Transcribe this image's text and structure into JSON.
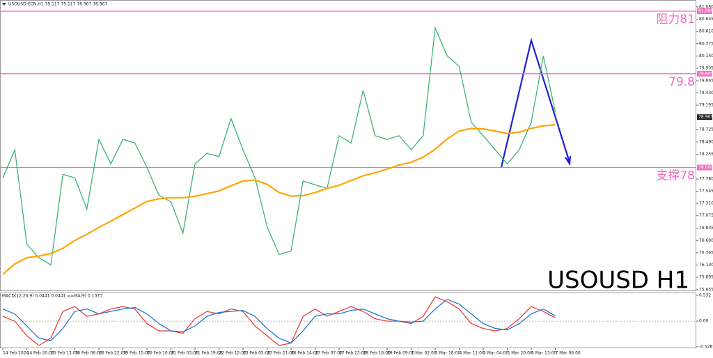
{
  "chart_data": [
    {
      "type": "line",
      "title": "USOUSD-ECN,H1 79.117 79.117 78.967 78.967",
      "watermark": "USOUSD H1",
      "categories": [
        "14 Feb 2024",
        null,
        "14 Feb 20:00",
        null,
        "15 Feb 13:00",
        null,
        "16 Feb 06:00",
        null,
        "16 Feb 22:00",
        null,
        "19 Feb 15:00",
        null,
        "20 Feb 10:00",
        null,
        "21 Feb 03:00",
        null,
        "21 Feb 19:00",
        null,
        "22 Feb 12:00",
        null,
        "23 Feb 05:00",
        null,
        "23 Feb 21:00",
        null,
        "26 Feb 14:00",
        null,
        "27 Feb 07:00",
        null,
        "27 Feb 23:00",
        null,
        "28 Feb 16:00",
        null,
        "29 Feb 09:00",
        null,
        "1 Mar 02:00",
        null,
        "1 Mar 18:00",
        null,
        "4 Mar 11:00",
        null,
        "5 Mar 04:00",
        null,
        "5 Mar 20:00",
        null,
        "6 Mar 13:00",
        null,
        "7 Mar 06:00"
      ],
      "series": [
        {
          "name": "USOUSD",
          "color": "#3cb371",
          "values": [
            77.8,
            78.34,
            76.53,
            76.27,
            76.13,
            77.87,
            77.8,
            77.2,
            78.54,
            78.07,
            78.54,
            78.47,
            78.0,
            77.47,
            77.34,
            76.74,
            78.07,
            78.27,
            78.21,
            78.94,
            78.34,
            77.8,
            76.87,
            76.33,
            76.4,
            77.74,
            77.67,
            77.6,
            78.61,
            78.47,
            79.48,
            78.61,
            78.54,
            78.61,
            78.34,
            78.61,
            80.68,
            80.14,
            79.94,
            78.87,
            78.61,
            78.34,
            78.07,
            78.34,
            78.87,
            80.14,
            79.07
          ]
        },
        {
          "name": "MA",
          "color": "#ffa500",
          "values": [
            75.95,
            76.15,
            76.27,
            76.3,
            76.35,
            76.45,
            76.6,
            76.72,
            76.85,
            76.97,
            77.1,
            77.22,
            77.35,
            77.4,
            77.42,
            77.42,
            77.45,
            77.5,
            77.55,
            77.65,
            77.74,
            77.76,
            77.68,
            77.52,
            77.45,
            77.46,
            77.52,
            77.6,
            77.66,
            77.75,
            77.84,
            77.9,
            77.97,
            78.05,
            78.1,
            78.2,
            78.35,
            78.55,
            78.7,
            78.75,
            78.74,
            78.7,
            78.65,
            78.68,
            78.75,
            78.8,
            78.82
          ]
        }
      ],
      "levels": [
        {
          "value": 81,
          "label": "阻力81",
          "tag": "81.000"
        },
        {
          "value": 79.8,
          "label": "79.8",
          "tag": "79.800"
        },
        {
          "value": 78,
          "label": "支撑78",
          "tag": "78.000"
        }
      ],
      "last_price": {
        "value": 78.967,
        "label": "78.967"
      },
      "level_color": "#f06ec0",
      "ylim": [
        75.655,
        81.08
      ],
      "yticks": [
        {
          "value": 81.08,
          "label": "81.080"
        },
        80.845,
        {
          "value": 80.61,
          "label": "80.610"
        },
        80.375,
        {
          "value": 80.14,
          "label": "80.140"
        },
        79.905,
        79.665,
        {
          "value": 79.43,
          "label": "79.430"
        },
        79.195,
        78.725,
        {
          "value": 78.49,
          "label": "78.490"
        },
        78.255,
        {
          "value": 77.78,
          "label": "77.780"
        },
        77.545,
        {
          "value": 77.31,
          "label": "77.310"
        },
        77.075,
        76.835,
        {
          "value": 76.6,
          "label": "76.600"
        },
        76.365,
        {
          "value": 76.13,
          "label": "76.130"
        },
        75.895,
        75.655
      ]
    },
    {
      "type": "line",
      "title": "MACD(12,26,9) 0.0441 0.0441 ==MA(9) 0.1073",
      "series": [
        {
          "name": "MACD",
          "color": "#e8403a",
          "values": [
            0.1,
            0.0,
            -0.3,
            -0.5,
            -0.35,
            0.2,
            0.3,
            0.1,
            0.15,
            0.25,
            0.3,
            0.25,
            -0.05,
            -0.2,
            -0.2,
            -0.25,
            0.05,
            0.2,
            0.15,
            0.25,
            0.2,
            -0.1,
            -0.3,
            -0.5,
            -0.45,
            0.1,
            0.25,
            0.1,
            0.2,
            0.3,
            0.2,
            0.05,
            0.0,
            0.0,
            -0.05,
            0.1,
            0.5,
            0.4,
            0.25,
            -0.05,
            -0.15,
            -0.2,
            -0.15,
            0.05,
            0.3,
            0.2,
            0.07
          ]
        },
        {
          "name": "Signal",
          "color": "#1f77d4",
          "values": [
            0.25,
            0.15,
            -0.1,
            -0.35,
            -0.4,
            -0.15,
            0.2,
            0.25,
            0.15,
            0.2,
            0.25,
            0.28,
            0.15,
            -0.05,
            -0.2,
            -0.22,
            -0.1,
            0.1,
            0.18,
            0.2,
            0.22,
            0.1,
            -0.15,
            -0.35,
            -0.45,
            -0.2,
            0.1,
            0.15,
            0.15,
            0.22,
            0.25,
            0.15,
            0.05,
            0.0,
            -0.02,
            0.0,
            0.25,
            0.45,
            0.35,
            0.15,
            -0.05,
            -0.15,
            -0.18,
            -0.05,
            0.15,
            0.25,
            0.11
          ]
        }
      ],
      "ylim": [
        -0.5287,
        0.532
      ],
      "yticks": [
        0.532,
        {
          "value": 0,
          "label": "0.00"
        },
        -0.5287
      ]
    }
  ]
}
